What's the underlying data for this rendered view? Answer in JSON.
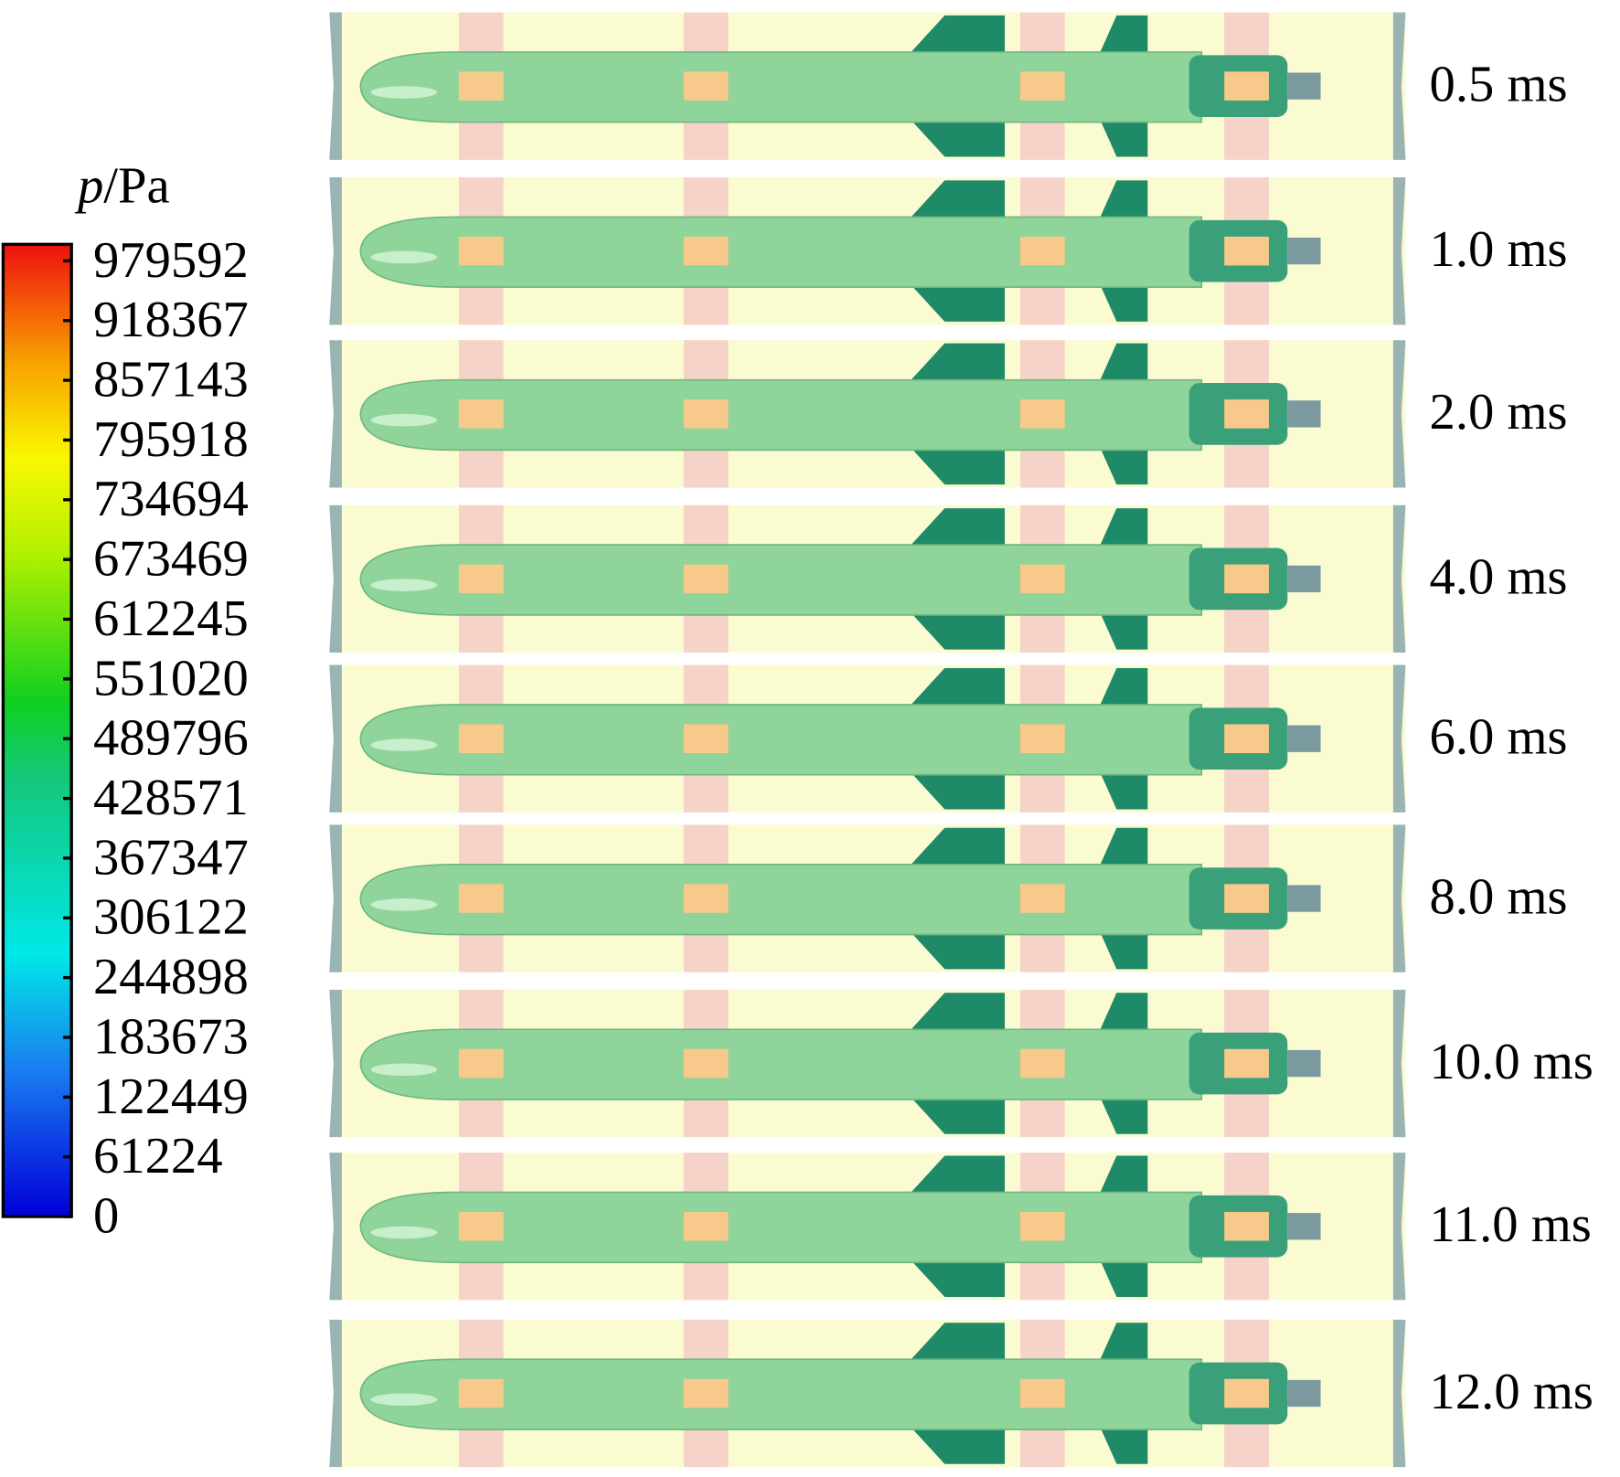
{
  "colorbar": {
    "title": {
      "symbol": "p",
      "unit": "/Pa"
    },
    "labels": [
      "979592",
      "918367",
      "857143",
      "795918",
      "734694",
      "673469",
      "612245",
      "551020",
      "489796",
      "428571",
      "367347",
      "306122",
      "244898",
      "183673",
      "122449",
      "61224",
      "0"
    ]
  },
  "panels": {
    "times": [
      "0.5 ms",
      "1.0 ms",
      "2.0 ms",
      "4.0 ms",
      "6.0 ms",
      "8.0 ms",
      "10.0 ms",
      "11.0 ms",
      "12.0 ms"
    ]
  }
}
